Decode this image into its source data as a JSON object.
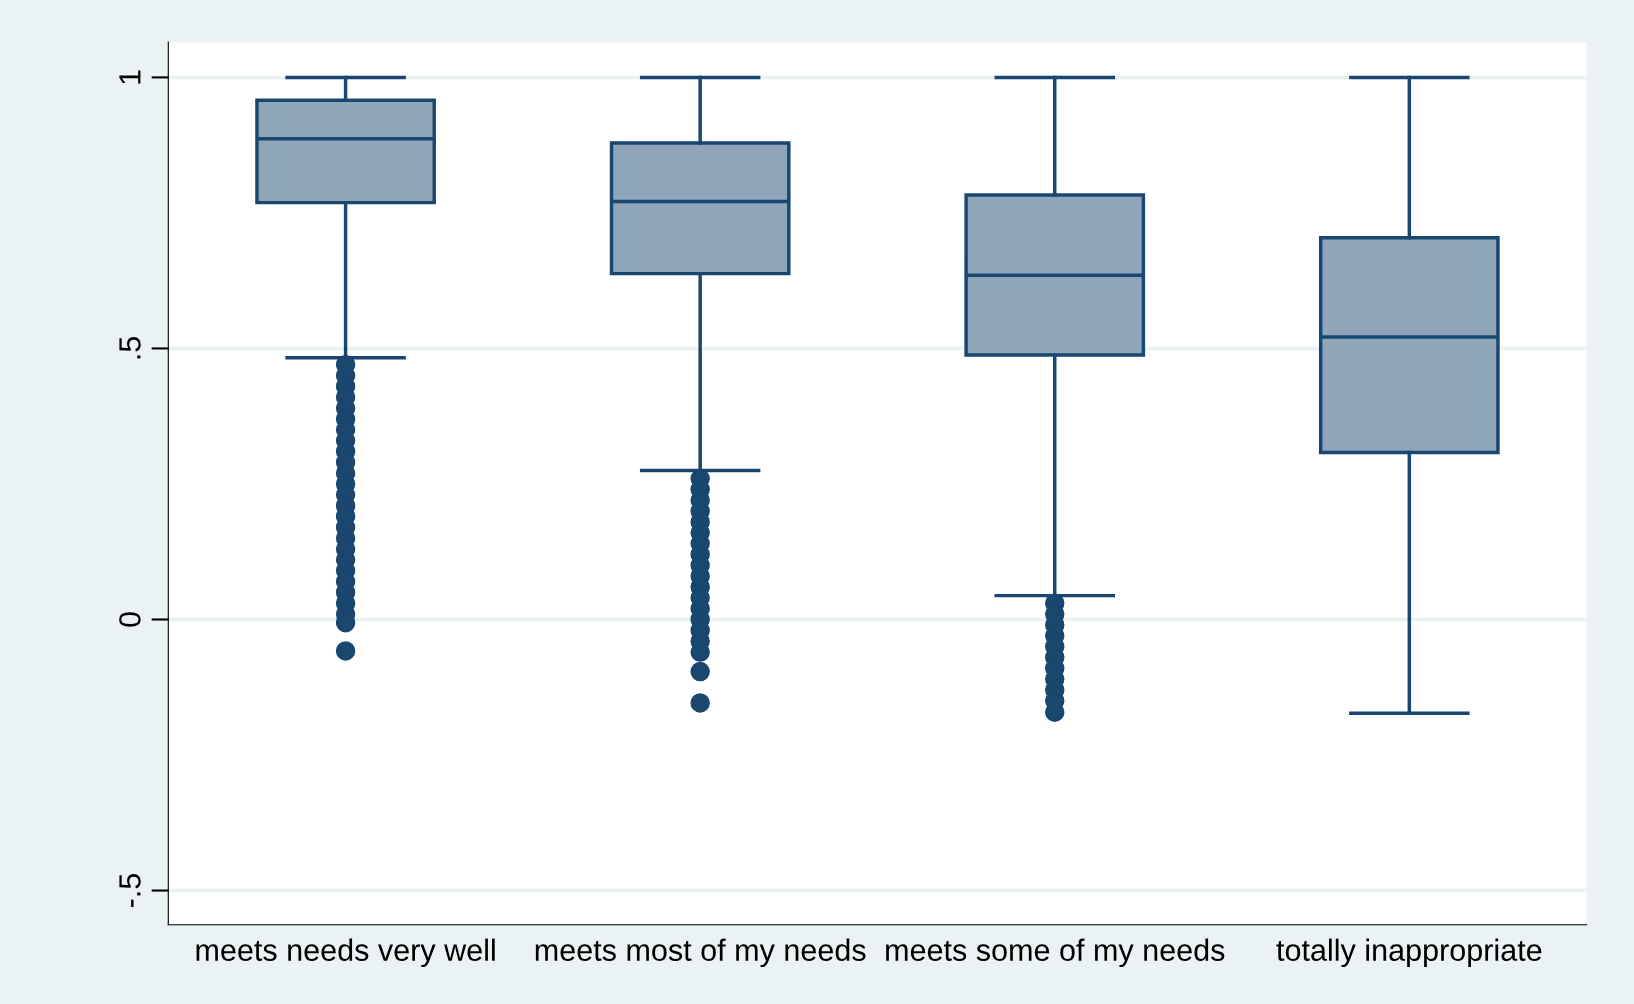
{
  "chart_data": {
    "type": "box",
    "categories": [
      "meets needs very well",
      "meets most of my needs",
      "meets some of my needs",
      "totally inappropriate"
    ],
    "boxes": [
      {
        "low": 0.483,
        "q1": 0.769,
        "median": 0.887,
        "q3": 0.958,
        "high": 1.0,
        "outliers": [
          0.47,
          0.45,
          0.43,
          0.41,
          0.39,
          0.37,
          0.35,
          0.33,
          0.31,
          0.29,
          0.27,
          0.25,
          0.23,
          0.21,
          0.19,
          0.17,
          0.15,
          0.13,
          0.11,
          0.09,
          0.07,
          0.05,
          0.03,
          0.01,
          -0.006,
          -0.058
        ]
      },
      {
        "low": 0.275,
        "q1": 0.638,
        "median": 0.771,
        "q3": 0.879,
        "high": 1.0,
        "outliers": [
          0.26,
          0.24,
          0.22,
          0.2,
          0.18,
          0.16,
          0.14,
          0.12,
          0.1,
          0.08,
          0.06,
          0.04,
          0.02,
          0.0,
          -0.02,
          -0.04,
          -0.06,
          -0.096,
          -0.154
        ]
      },
      {
        "low": 0.044,
        "q1": 0.488,
        "median": 0.635,
        "q3": 0.783,
        "high": 1.0,
        "outliers": [
          0.03,
          0.01,
          -0.01,
          -0.03,
          -0.05,
          -0.07,
          -0.09,
          -0.11,
          -0.13,
          -0.15,
          -0.171
        ]
      },
      {
        "low": -0.173,
        "q1": 0.308,
        "median": 0.521,
        "q3": 0.704,
        "high": 1.0
      }
    ],
    "color": "#8ea5ba",
    "ylim": [
      -0.563,
      1.065
    ],
    "yticks": [
      {
        "value": -0.5,
        "label": "-.5"
      },
      0,
      {
        "value": 0.5,
        "label": ".5"
      },
      1
    ],
    "grid": "y",
    "marker": "circle"
  }
}
